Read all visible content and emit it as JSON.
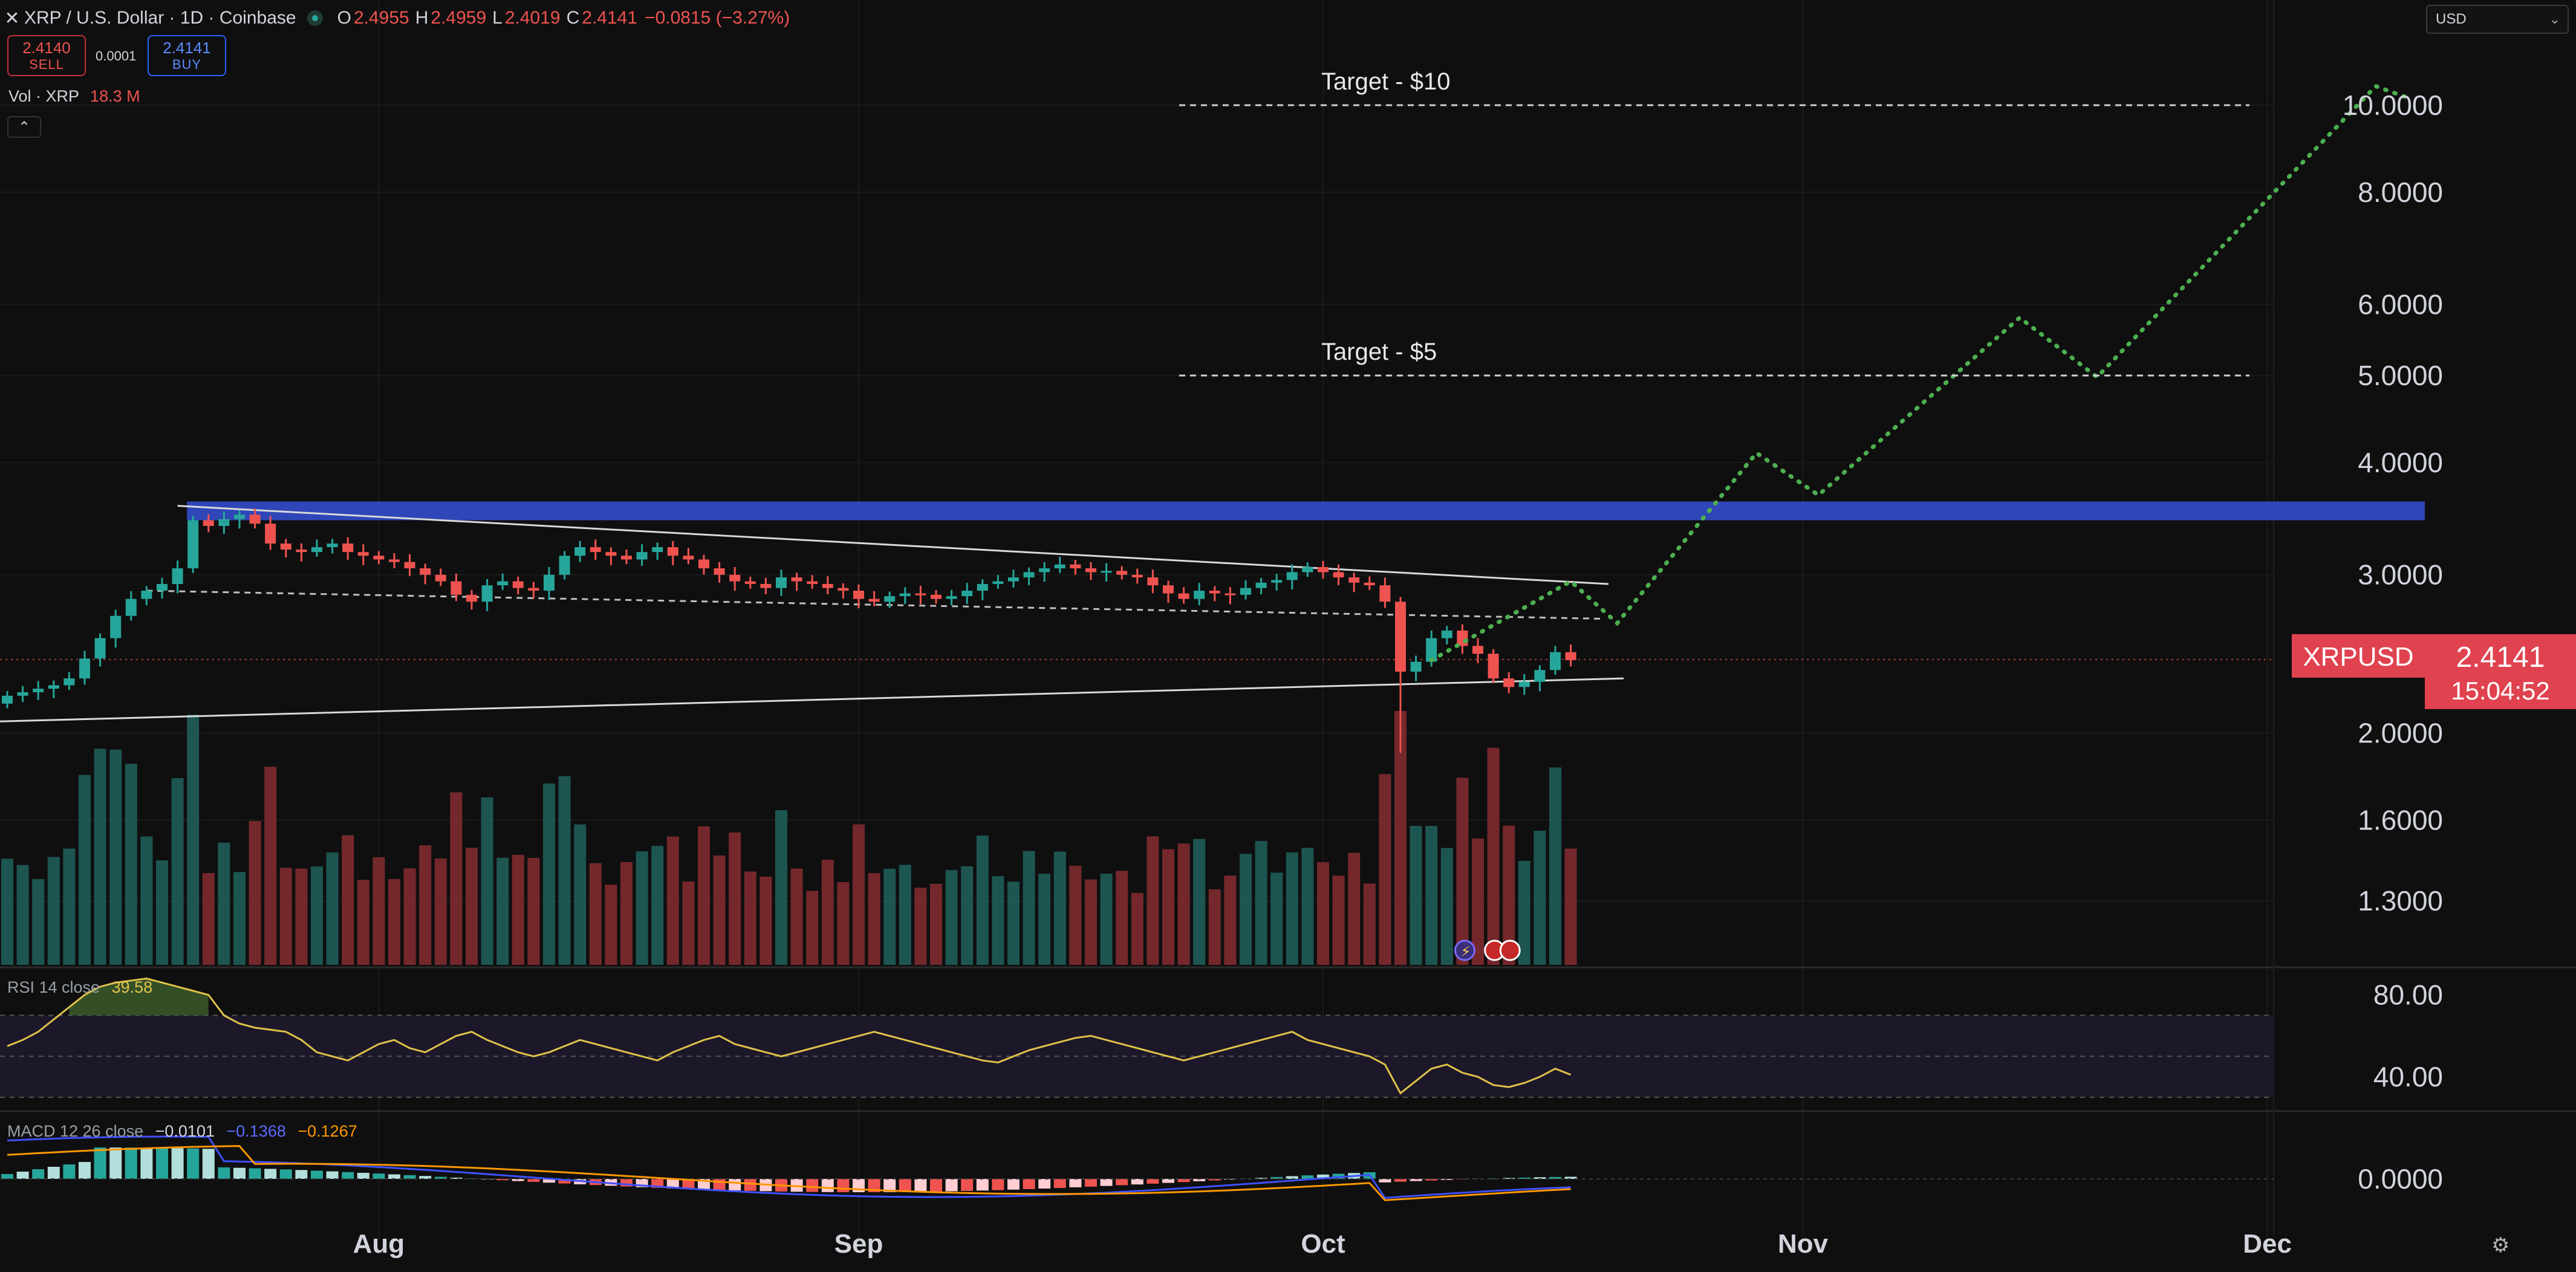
{
  "header": {
    "close_icon": "close-icon",
    "symbol": "XRP / U.S. Dollar · 1D · Coinbase",
    "ohlc": [
      {
        "k": "O",
        "v": "2.4955"
      },
      {
        "k": "H",
        "v": "2.4959"
      },
      {
        "k": "L",
        "v": "2.4019"
      },
      {
        "k": "C",
        "v": "2.4141"
      }
    ],
    "change": "−0.0815 (−3.27%)"
  },
  "trade": {
    "sell_price": "2.4140",
    "sell_label": "SELL",
    "spread": "0.0001",
    "buy_price": "2.4141",
    "buy_label": "BUY"
  },
  "volume_legend": {
    "label": "Vol · XRP",
    "value": "18.3 M"
  },
  "currency_select": {
    "value": "USD"
  },
  "colors": {
    "up": "#26a69a",
    "down": "#ef5350",
    "resistance": "#2f46b8",
    "projection": "#4caf50",
    "rsi": "#e0c24a"
  },
  "chart_data": [
    {
      "type": "candlestick",
      "scale": "log",
      "ylim": [
        1.1,
        12.5
      ],
      "x_ticks": [
        "Aug",
        "Sep",
        "Oct",
        "Nov",
        "Dec"
      ],
      "y_ticks": [
        "10.0000",
        "8.0000",
        "6.0000",
        "5.0000",
        "4.0000",
        "3.0000",
        "2.0000",
        "1.6000",
        "1.3000"
      ],
      "y_tick_values": [
        10,
        8,
        6,
        5,
        4,
        3,
        2,
        1.6,
        1.3
      ],
      "last_price": {
        "symbol": "XRPUSD",
        "value": "2.4141",
        "countdown": "15:04:52",
        "price": 2.4141
      },
      "annotations": [
        {
          "label": "Target - $10",
          "price": 10
        },
        {
          "label": "Target - $5",
          "price": 5
        }
      ],
      "resistance_zone": [
        3.45,
        3.62
      ],
      "close_series_approx": [
        2.2,
        2.22,
        2.24,
        2.26,
        2.3,
        2.42,
        2.55,
        2.7,
        2.82,
        2.88,
        2.93,
        3.05,
        3.45,
        3.4,
        3.46,
        3.5,
        3.42,
        3.25,
        3.2,
        3.18,
        3.22,
        3.25,
        3.18,
        3.15,
        3.12,
        3.1,
        3.05,
        3.0,
        2.95,
        2.85,
        2.8,
        2.92,
        2.95,
        2.9,
        2.88,
        3.0,
        3.15,
        3.22,
        3.18,
        3.15,
        3.12,
        3.18,
        3.22,
        3.15,
        3.12,
        3.05,
        3.0,
        2.95,
        2.93,
        2.9,
        2.98,
        2.95,
        2.93,
        2.9,
        2.88,
        2.82,
        2.8,
        2.84,
        2.86,
        2.85,
        2.82,
        2.84,
        2.88,
        2.93,
        2.95,
        2.98,
        3.02,
        3.05,
        3.08,
        3.05,
        3.02,
        3.03,
        3.0,
        2.98,
        2.92,
        2.86,
        2.82,
        2.88,
        2.86,
        2.85,
        2.9,
        2.94,
        2.96,
        3.02,
        3.06,
        3.02,
        2.98,
        2.94,
        2.92,
        2.8,
        2.34,
        2.4,
        2.55,
        2.6,
        2.5,
        2.45,
        2.3,
        2.25,
        2.28,
        2.35,
        2.46,
        2.41
      ],
      "projection_path": [
        [
          92,
          2.41
        ],
        [
          101,
          2.95
        ],
        [
          104,
          2.65
        ],
        [
          113,
          4.1
        ],
        [
          117,
          3.68
        ],
        [
          130,
          5.8
        ],
        [
          135,
          4.98
        ],
        [
          153,
          10.5
        ],
        [
          155,
          10.2
        ]
      ]
    },
    {
      "type": "line",
      "name": "RSI 14 close",
      "current_value": "39.58",
      "y_ticks": [
        "80.00",
        "40.00"
      ],
      "y_tick_values": [
        80,
        40
      ],
      "ylim": [
        25,
        92
      ],
      "bands": [
        30,
        50,
        70
      ],
      "values_approx": [
        55,
        58,
        62,
        68,
        74,
        80,
        84,
        86,
        87,
        88,
        86,
        84,
        82,
        80,
        70,
        66,
        64,
        63,
        62,
        58,
        52,
        50,
        48,
        52,
        56,
        58,
        54,
        52,
        56,
        60,
        62,
        58,
        55,
        52,
        50,
        52,
        55,
        58,
        56,
        54,
        52,
        50,
        48,
        52,
        55,
        58,
        60,
        56,
        54,
        52,
        50,
        52,
        54,
        56,
        58,
        60,
        62,
        60,
        58,
        56,
        54,
        52,
        50,
        48,
        47,
        50,
        53,
        55,
        57,
        59,
        60,
        58,
        56,
        54,
        52,
        50,
        48,
        50,
        52,
        54,
        56,
        58,
        60,
        62,
        58,
        56,
        54,
        52,
        50,
        46,
        32,
        38,
        44,
        46,
        42,
        40,
        36,
        35,
        37,
        40,
        44,
        41
      ]
    },
    {
      "type": "histogram",
      "name": "MACD 12 26 close",
      "values": [
        "−0.0101",
        "−0.1368",
        "−0.1267"
      ],
      "y_ticks": [
        "0.0000"
      ],
      "y_tick_values": [
        0
      ]
    }
  ]
}
